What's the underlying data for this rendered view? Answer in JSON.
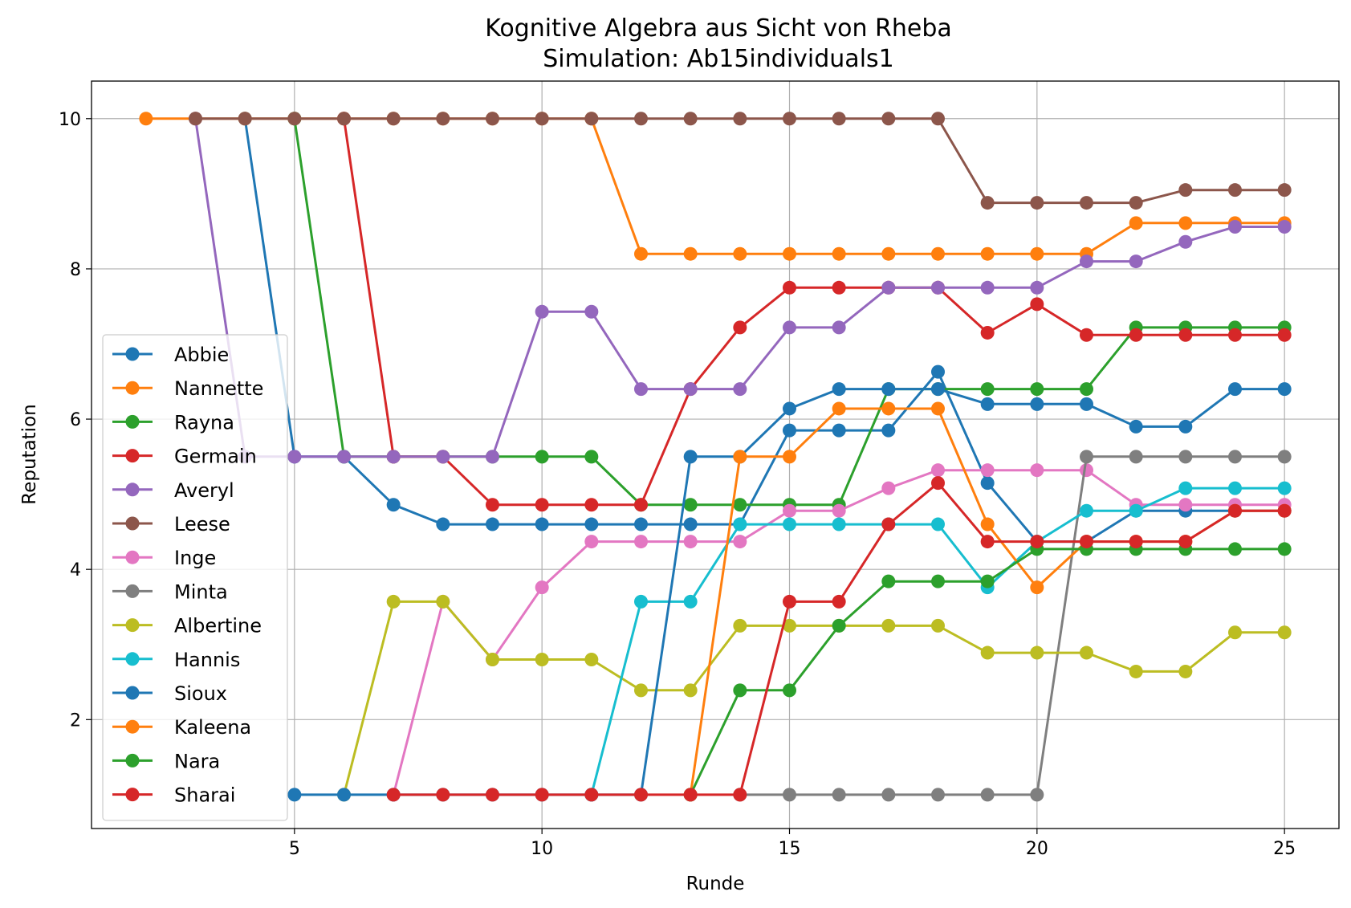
{
  "chart_data": {
    "type": "line",
    "title": "Kognitive Algebra aus Sicht von Rheba",
    "subtitle": "Simulation: Ab15individuals1",
    "xlabel": "Runde",
    "ylabel": "Reputation",
    "xlim": [
      0.9,
      26.1
    ],
    "ylim": [
      0.55,
      10.5
    ],
    "xticks": [
      5,
      10,
      15,
      20,
      25
    ],
    "yticks": [
      2,
      4,
      6,
      8,
      10
    ],
    "grid": true,
    "legend_position": "lower-left",
    "series": [
      {
        "name": "Abbie",
        "color": "#1f77b4",
        "x": [
          4,
          5,
          6,
          7,
          8,
          9,
          10,
          11,
          12,
          13,
          14,
          15,
          16,
          17,
          18,
          19,
          20,
          21,
          22,
          23,
          24,
          25
        ],
        "y": [
          10,
          5.5,
          5.5,
          4.86,
          4.6,
          4.6,
          4.6,
          4.6,
          4.6,
          4.6,
          4.6,
          5.85,
          5.85,
          5.85,
          6.63,
          5.15,
          4.37,
          4.37,
          4.78,
          4.78,
          4.78,
          4.78
        ]
      },
      {
        "name": "Nannette",
        "color": "#ff7f0e",
        "x": [
          2,
          3,
          4,
          5,
          6,
          7,
          8,
          9,
          10,
          11,
          12,
          13,
          14,
          15,
          16,
          17,
          18,
          19,
          20,
          21,
          22,
          23,
          24,
          25
        ],
        "y": [
          10,
          10,
          10,
          10,
          10,
          10,
          10,
          10,
          10,
          10,
          8.2,
          8.2,
          8.2,
          8.2,
          8.2,
          8.2,
          8.2,
          8.2,
          8.2,
          8.2,
          8.61,
          8.61,
          8.61,
          8.61
        ]
      },
      {
        "name": "Rayna",
        "color": "#2ca02c",
        "x": [
          5,
          6,
          7,
          8,
          9,
          10,
          11,
          12,
          13,
          14,
          15,
          16,
          17,
          18,
          19,
          20,
          21,
          22,
          23,
          24,
          25
        ],
        "y": [
          10,
          5.5,
          5.5,
          5.5,
          5.5,
          5.5,
          5.5,
          4.86,
          4.86,
          4.86,
          4.86,
          4.86,
          6.4,
          6.4,
          6.4,
          6.4,
          6.4,
          7.22,
          7.22,
          7.22,
          7.22
        ]
      },
      {
        "name": "Germain",
        "color": "#d62728",
        "x": [
          6,
          7,
          8,
          9,
          10,
          11,
          12,
          13,
          14,
          15,
          16,
          17,
          18,
          19,
          20,
          21,
          22,
          23,
          24,
          25
        ],
        "y": [
          10,
          5.5,
          5.5,
          4.86,
          4.86,
          4.86,
          4.86,
          6.4,
          7.22,
          7.75,
          7.75,
          7.75,
          7.75,
          7.15,
          7.53,
          7.12,
          7.12,
          7.12,
          7.12,
          7.12
        ]
      },
      {
        "name": "Averyl",
        "color": "#9467bd",
        "x": [
          3,
          4,
          5,
          6,
          7,
          8,
          9,
          10,
          11,
          12,
          13,
          14,
          15,
          16,
          17,
          18,
          19,
          20,
          21,
          22,
          23,
          24,
          25
        ],
        "y": [
          10,
          5.5,
          5.5,
          5.5,
          5.5,
          5.5,
          5.5,
          7.43,
          7.43,
          6.4,
          6.4,
          6.4,
          7.22,
          7.22,
          7.75,
          7.75,
          7.75,
          7.75,
          8.1,
          8.1,
          8.36,
          8.56,
          8.56
        ]
      },
      {
        "name": "Leese",
        "color": "#8c564b",
        "x": [
          3,
          4,
          5,
          6,
          7,
          8,
          9,
          10,
          11,
          12,
          13,
          14,
          15,
          16,
          17,
          18,
          19,
          20,
          21,
          22,
          23,
          24,
          25
        ],
        "y": [
          10,
          10,
          10,
          10,
          10,
          10,
          10,
          10,
          10,
          10,
          10,
          10,
          10,
          10,
          10,
          10,
          8.88,
          8.88,
          8.88,
          8.88,
          9.05,
          9.05,
          9.05
        ]
      },
      {
        "name": "Inge",
        "color": "#e377c2",
        "x": [
          7,
          8,
          9,
          10,
          11,
          12,
          13,
          14,
          15,
          16,
          17,
          18,
          19,
          20,
          21,
          22,
          23,
          24,
          25
        ],
        "y": [
          1,
          3.57,
          2.8,
          3.76,
          4.37,
          4.37,
          4.37,
          4.37,
          4.78,
          4.78,
          5.08,
          5.32,
          5.32,
          5.32,
          5.32,
          4.86,
          4.86,
          4.86,
          4.86
        ]
      },
      {
        "name": "Minta",
        "color": "#7f7f7f",
        "x": [
          14,
          15,
          16,
          17,
          18,
          19,
          20,
          21,
          22,
          23,
          24,
          25
        ],
        "y": [
          1,
          1,
          1,
          1,
          1,
          1,
          1,
          5.5,
          5.5,
          5.5,
          5.5,
          5.5
        ]
      },
      {
        "name": "Albertine",
        "color": "#bcbd22",
        "x": [
          6,
          7,
          8,
          9,
          10,
          11,
          12,
          13,
          14,
          15,
          16,
          17,
          18,
          19,
          20,
          21,
          22,
          23,
          24,
          25
        ],
        "y": [
          1,
          3.57,
          3.57,
          2.8,
          2.8,
          2.8,
          2.39,
          2.39,
          3.25,
          3.25,
          3.25,
          3.25,
          3.25,
          2.89,
          2.89,
          2.89,
          2.64,
          2.64,
          3.16,
          3.16
        ]
      },
      {
        "name": "Hannis",
        "color": "#17becf",
        "x": [
          11,
          12,
          13,
          14,
          15,
          16,
          17,
          18,
          19,
          20,
          21,
          22,
          23,
          24,
          25
        ],
        "y": [
          1,
          3.57,
          3.57,
          4.6,
          4.6,
          4.6,
          4.6,
          4.6,
          3.76,
          4.37,
          4.78,
          4.78,
          5.08,
          5.08,
          5.08
        ]
      },
      {
        "name": "Sioux",
        "color": "#1f77b4",
        "x": [
          5,
          6,
          7,
          8,
          9,
          10,
          11,
          12,
          13,
          14,
          15,
          16,
          17,
          18,
          19,
          20,
          21,
          22,
          23,
          24,
          25
        ],
        "y": [
          1,
          1,
          1,
          1,
          1,
          1,
          1,
          1,
          5.5,
          5.5,
          6.14,
          6.4,
          6.4,
          6.4,
          6.2,
          6.2,
          6.2,
          5.9,
          5.9,
          6.4,
          6.4
        ]
      },
      {
        "name": "Kaleena",
        "color": "#ff7f0e",
        "x": [
          13,
          14,
          15,
          16,
          17,
          18,
          19,
          20,
          21,
          22,
          23,
          24,
          25
        ],
        "y": [
          1,
          5.5,
          5.5,
          6.14,
          6.14,
          6.14,
          4.6,
          3.76,
          4.37,
          4.37,
          4.37,
          4.78,
          4.78
        ]
      },
      {
        "name": "Nara",
        "color": "#2ca02c",
        "x": [
          13,
          14,
          15,
          16,
          17,
          18,
          19,
          20,
          21,
          22,
          23,
          24,
          25
        ],
        "y": [
          1,
          2.39,
          2.39,
          3.25,
          3.84,
          3.84,
          3.84,
          4.27,
          4.27,
          4.27,
          4.27,
          4.27,
          4.27
        ]
      },
      {
        "name": "Sharai",
        "color": "#d62728",
        "x": [
          7,
          8,
          9,
          10,
          11,
          12,
          13,
          14,
          15,
          16,
          17,
          18,
          19,
          20,
          21,
          22,
          23,
          24,
          25
        ],
        "y": [
          1,
          1,
          1,
          1,
          1,
          1,
          1,
          1,
          3.57,
          3.57,
          4.6,
          5.15,
          4.37,
          4.37,
          4.37,
          4.37,
          4.37,
          4.78,
          4.78
        ]
      }
    ]
  }
}
